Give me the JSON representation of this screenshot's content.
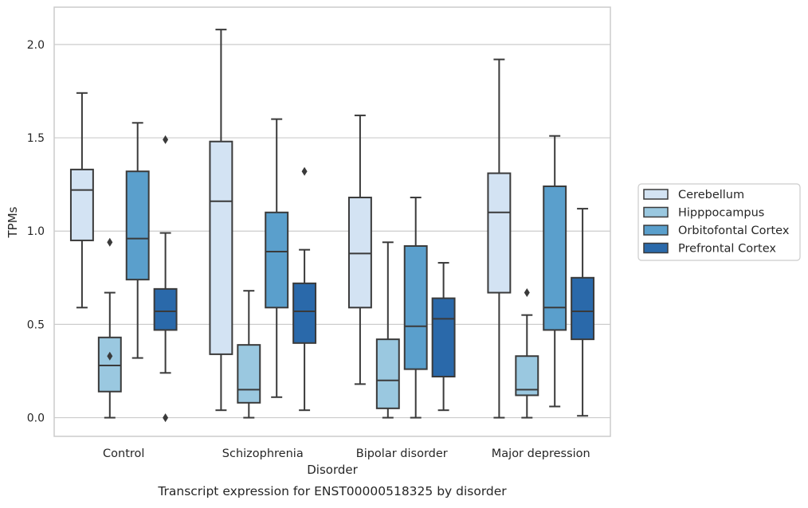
{
  "chart_data": {
    "type": "boxplot",
    "caption": "Transcript expression for ENST00000518325 by disorder",
    "xlabel": "Disorder",
    "ylabel": "TPMs",
    "ylim": [
      -0.1,
      2.2
    ],
    "yticks": [
      0.0,
      0.5,
      1.0,
      1.5,
      2.0
    ],
    "ytick_labels": [
      "0.0",
      "0.5",
      "1.0",
      "1.5",
      "2.0"
    ],
    "grid": "horizontal",
    "legend_position": "right",
    "categories": [
      "Control",
      "Schizophrenia",
      "Bipolar disorder",
      "Major depression"
    ],
    "series": [
      {
        "name": "Cerebellum",
        "color": "#d3e3f3",
        "boxes": [
          {
            "whislo": 0.59,
            "q1": 0.95,
            "med": 1.22,
            "q3": 1.33,
            "whishi": 1.74,
            "fliers": []
          },
          {
            "whislo": 0.04,
            "q1": 0.34,
            "med": 1.16,
            "q3": 1.48,
            "whishi": 2.08,
            "fliers": []
          },
          {
            "whislo": 0.18,
            "q1": 0.59,
            "med": 0.88,
            "q3": 1.18,
            "whishi": 1.62,
            "fliers": []
          },
          {
            "whislo": 0.0,
            "q1": 0.67,
            "med": 1.1,
            "q3": 1.31,
            "whishi": 1.92,
            "fliers": []
          }
        ]
      },
      {
        "name": "Hipppocampus",
        "color": "#9ac8e0",
        "boxes": [
          {
            "whislo": 0.0,
            "q1": 0.14,
            "med": 0.28,
            "q3": 0.43,
            "whishi": 0.67,
            "fliers": [
              0.33,
              0.94
            ]
          },
          {
            "whislo": 0.0,
            "q1": 0.08,
            "med": 0.15,
            "q3": 0.39,
            "whishi": 0.68,
            "fliers": []
          },
          {
            "whislo": 0.0,
            "q1": 0.05,
            "med": 0.2,
            "q3": 0.42,
            "whishi": 0.94,
            "fliers": []
          },
          {
            "whislo": 0.0,
            "q1": 0.12,
            "med": 0.15,
            "q3": 0.33,
            "whishi": 0.55,
            "fliers": [
              0.67
            ]
          }
        ]
      },
      {
        "name": "Orbitofontal Cortex",
        "color": "#5a9fcc",
        "boxes": [
          {
            "whislo": 0.32,
            "q1": 0.74,
            "med": 0.96,
            "q3": 1.32,
            "whishi": 1.58,
            "fliers": []
          },
          {
            "whislo": 0.11,
            "q1": 0.59,
            "med": 0.89,
            "q3": 1.1,
            "whishi": 1.6,
            "fliers": []
          },
          {
            "whislo": 0.0,
            "q1": 0.26,
            "med": 0.49,
            "q3": 0.92,
            "whishi": 1.18,
            "fliers": []
          },
          {
            "whislo": 0.06,
            "q1": 0.47,
            "med": 0.59,
            "q3": 1.24,
            "whishi": 1.51,
            "fliers": []
          }
        ]
      },
      {
        "name": "Prefrontal Cortex",
        "color": "#2a69aa",
        "boxes": [
          {
            "whislo": 0.24,
            "q1": 0.47,
            "med": 0.57,
            "q3": 0.69,
            "whishi": 0.99,
            "fliers": [
              0.0,
              1.49
            ]
          },
          {
            "whislo": 0.04,
            "q1": 0.4,
            "med": 0.57,
            "q3": 0.72,
            "whishi": 0.9,
            "fliers": [
              1.32
            ]
          },
          {
            "whislo": 0.04,
            "q1": 0.22,
            "med": 0.53,
            "q3": 0.64,
            "whishi": 0.83,
            "fliers": []
          },
          {
            "whislo": 0.01,
            "q1": 0.42,
            "med": 0.57,
            "q3": 0.75,
            "whishi": 1.12,
            "fliers": []
          }
        ]
      }
    ]
  },
  "style": {
    "line_color": "#3a3a3a",
    "grid_color": "#cccccc",
    "frame_color": "#cccccc"
  }
}
